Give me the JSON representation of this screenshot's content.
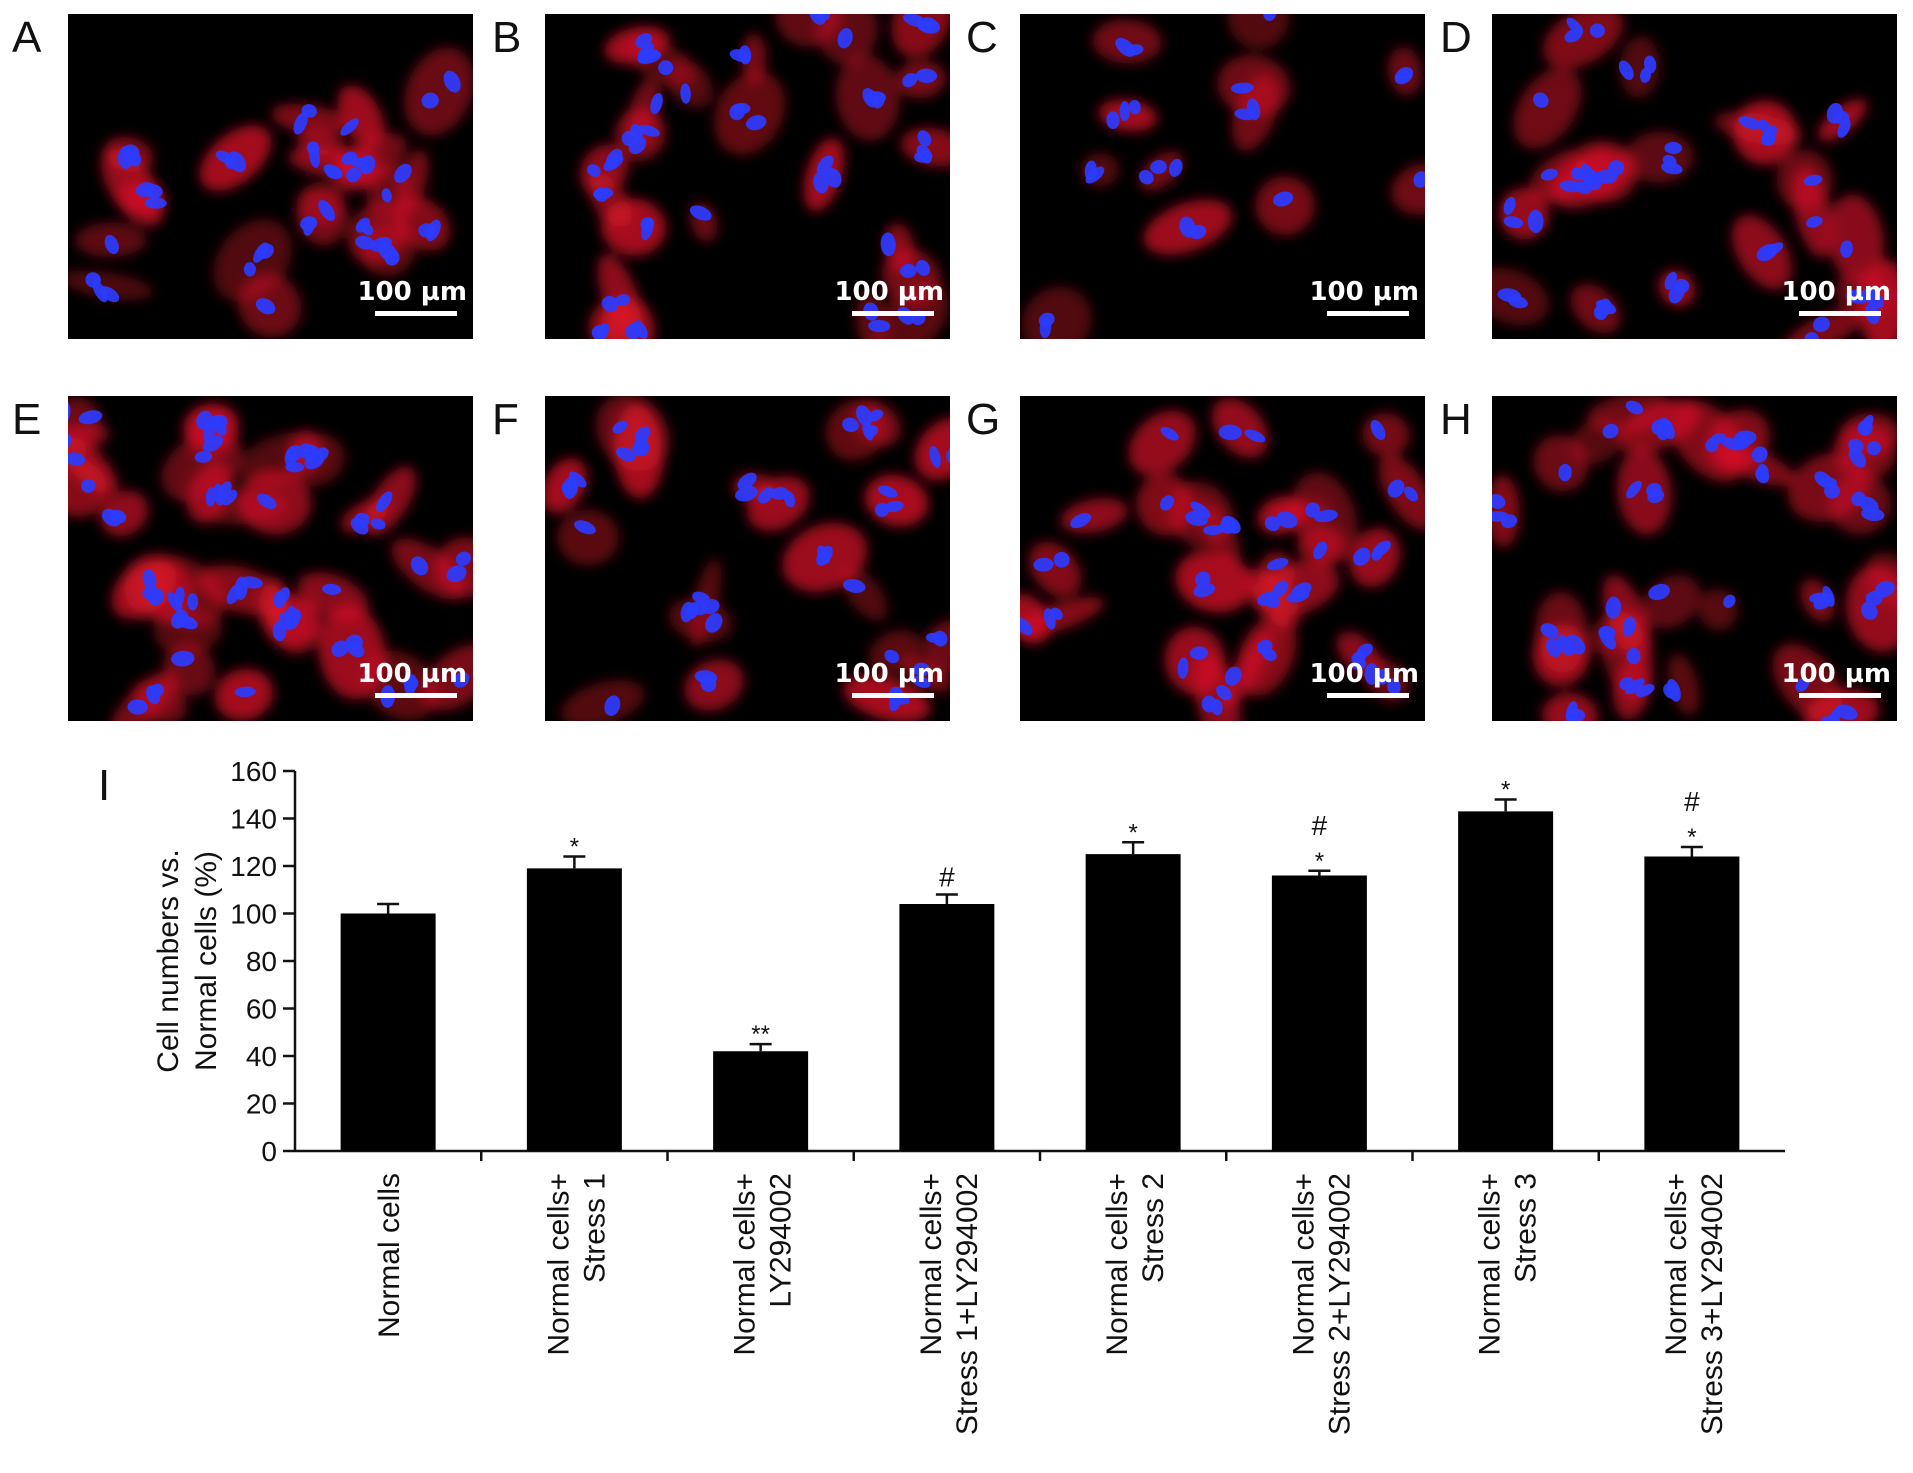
{
  "panels": [
    {
      "letter": "A",
      "scale_label": "100 µm"
    },
    {
      "letter": "B",
      "scale_label": "100 µm"
    },
    {
      "letter": "C",
      "scale_label": "100 µm"
    },
    {
      "letter": "D",
      "scale_label": "100 µm"
    },
    {
      "letter": "E",
      "scale_label": "100 µm"
    },
    {
      "letter": "F",
      "scale_label": "100 µm"
    },
    {
      "letter": "G",
      "scale_label": "100 µm"
    },
    {
      "letter": "H",
      "scale_label": "100 µm"
    }
  ],
  "stain_colors": {
    "cytoskeleton": "#e0142a",
    "nuclei": "#2b3cff",
    "background": "#000000"
  },
  "chart_data": {
    "type": "bar",
    "panel_letter": "I",
    "title": "",
    "xlabel": "",
    "ylabel": "Cell numbers vs. Normal cells (%)",
    "ylabel_lines": [
      "Cell numbers vs.",
      "Normal cells (%)"
    ],
    "ylim": [
      0,
      160
    ],
    "yticks": [
      0,
      20,
      40,
      60,
      80,
      100,
      120,
      140,
      160
    ],
    "grid": false,
    "bar_color": "#000000",
    "categories": [
      [
        "Normal cells"
      ],
      [
        "Normal cells+",
        "Stress 1"
      ],
      [
        "Normal cells+",
        "LY294002"
      ],
      [
        "Normal cells+",
        "Stress 1+LY294002"
      ],
      [
        "Normal cells+",
        "Stress 2"
      ],
      [
        "Normal cells+",
        "Stress 2+LY294002"
      ],
      [
        "Normal cells+",
        "Stress 3"
      ],
      [
        "Normal cells+",
        "Stress 3+LY294002"
      ]
    ],
    "values": [
      100,
      119,
      42,
      104,
      125,
      116,
      143,
      124
    ],
    "errors": [
      4,
      5,
      3,
      4,
      5,
      2,
      5,
      4
    ],
    "annotations": [
      [],
      [
        "*"
      ],
      [
        "**"
      ],
      [
        "#"
      ],
      [
        "*"
      ],
      [
        "#",
        "*"
      ],
      [
        "*"
      ],
      [
        "#",
        "*"
      ]
    ]
  }
}
